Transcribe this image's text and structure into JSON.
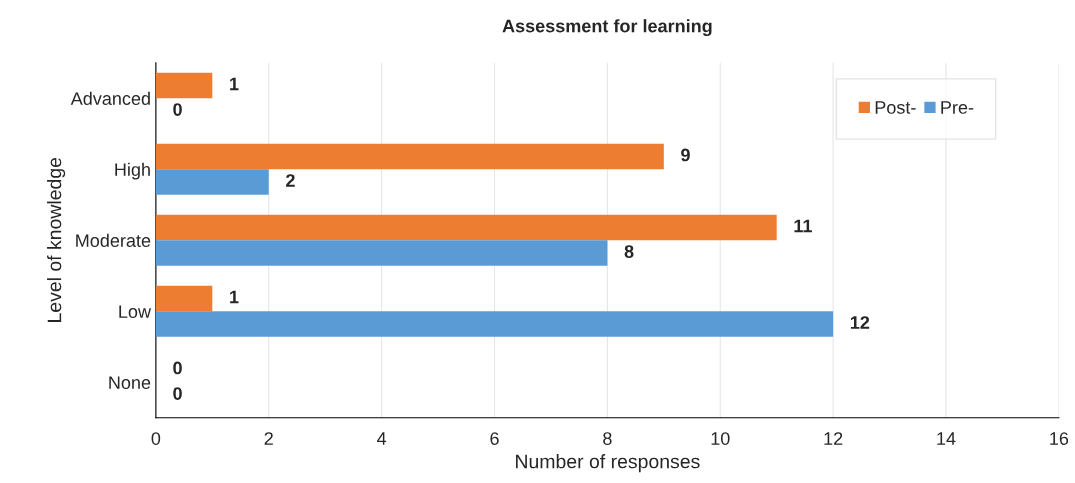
{
  "chart_data": {
    "type": "bar",
    "orientation": "horizontal",
    "title": "Assessment for learning",
    "xlabel": "Number of responses",
    "ylabel": "Level of knowledge",
    "categories": [
      "Advanced",
      "High",
      "Moderate",
      "Low",
      "None"
    ],
    "series": [
      {
        "name": "Post-",
        "color": "#ed7d31",
        "values": [
          1,
          9,
          11,
          1,
          0
        ]
      },
      {
        "name": "Pre-",
        "color": "#5b9bd5",
        "values": [
          0,
          2,
          8,
          12,
          0
        ]
      }
    ],
    "xlim": [
      0,
      16
    ],
    "xticks": [
      0,
      2,
      4,
      6,
      8,
      10,
      12,
      14,
      16
    ],
    "grid": "x",
    "legend": "top right",
    "data_labels": true
  }
}
